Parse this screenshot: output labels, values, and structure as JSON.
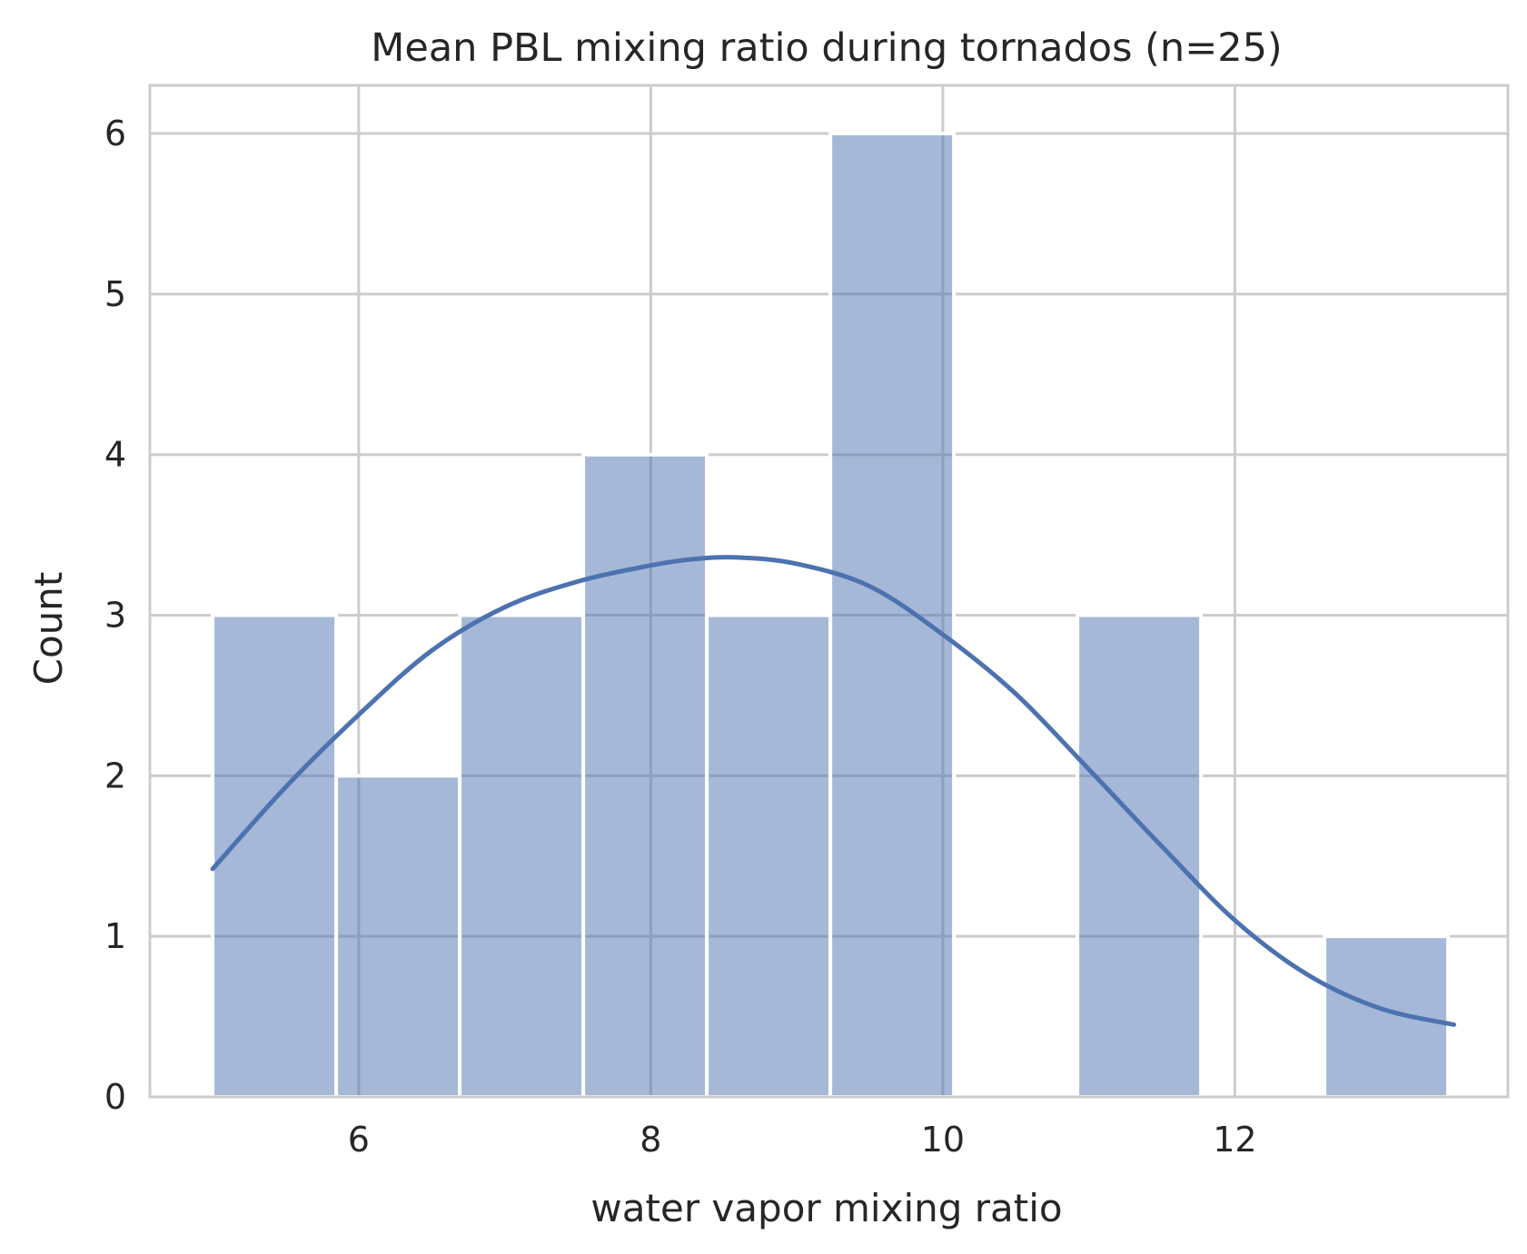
{
  "chart_data": {
    "type": "bar",
    "title": "Mean PBL mixing ratio during tornados (n=25)",
    "xlabel": "water vapor mixing ratio",
    "ylabel": "Count",
    "xlim": [
      4.57,
      13.87
    ],
    "ylim": [
      0,
      6.3
    ],
    "xticks": [
      6,
      8,
      10,
      12
    ],
    "yticks": [
      0,
      1,
      2,
      3,
      4,
      5,
      6
    ],
    "grid": true,
    "bins": [
      {
        "x0": 5.0,
        "x1": 5.846,
        "count": 3
      },
      {
        "x0": 5.846,
        "x1": 6.692,
        "count": 2
      },
      {
        "x0": 6.692,
        "x1": 7.538,
        "count": 3
      },
      {
        "x0": 7.538,
        "x1": 8.384,
        "count": 4
      },
      {
        "x0": 8.384,
        "x1": 9.23,
        "count": 3
      },
      {
        "x0": 9.23,
        "x1": 10.076,
        "count": 6
      },
      {
        "x0": 10.076,
        "x1": 10.922,
        "count": 0
      },
      {
        "x0": 10.922,
        "x1": 11.768,
        "count": 3
      },
      {
        "x0": 11.768,
        "x1": 12.614,
        "count": 0
      },
      {
        "x0": 12.614,
        "x1": 13.46,
        "count": 1
      }
    ],
    "kde": {
      "x": [
        5.0,
        5.5,
        6.0,
        6.5,
        7.0,
        7.5,
        8.0,
        8.3,
        8.6,
        9.0,
        9.5,
        10.0,
        10.5,
        11.0,
        11.5,
        12.0,
        12.5,
        13.0,
        13.5
      ],
      "y": [
        1.42,
        1.93,
        2.38,
        2.78,
        3.05,
        3.21,
        3.31,
        3.35,
        3.36,
        3.32,
        3.18,
        2.88,
        2.51,
        2.04,
        1.56,
        1.1,
        0.76,
        0.55,
        0.45
      ]
    },
    "colors": {
      "bar": "#4c72b0",
      "bar_opacity": 0.5,
      "line": "#4c72b0",
      "grid": "#cccccc",
      "spine": "#cccccc",
      "text": "#262626"
    }
  }
}
